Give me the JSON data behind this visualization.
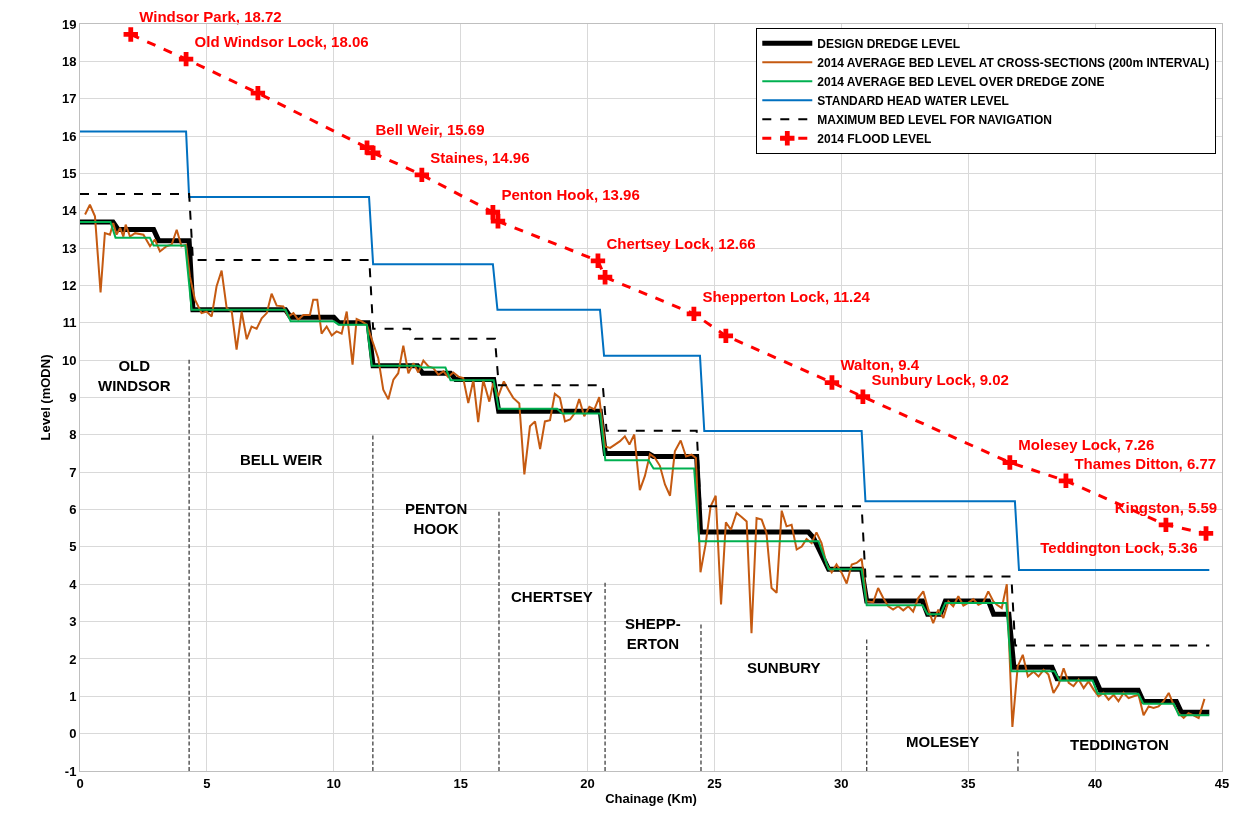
{
  "chart_data": {
    "type": "line",
    "xlabel": "Chainage (Km)",
    "ylabel": "Level (mODN)",
    "xlim": [
      0,
      45
    ],
    "ylim": [
      -1,
      19
    ],
    "xticks": [
      0,
      5,
      10,
      15,
      20,
      25,
      30,
      35,
      40,
      45
    ],
    "yticks": [
      -1,
      0,
      1,
      2,
      3,
      4,
      5,
      6,
      7,
      8,
      9,
      10,
      11,
      12,
      13,
      14,
      15,
      16,
      17,
      18,
      19
    ],
    "grid": true,
    "legend": "top right",
    "series": [
      {
        "name": "DESIGN DREDGE LEVEL",
        "color": "#000000",
        "line_style": "solid",
        "x": [
          0,
          1.3,
          1.5,
          2.9,
          3.1,
          4.3,
          4.45,
          8.1,
          8.3,
          10.0,
          10.2,
          11.35,
          11.55,
          13.3,
          13.5,
          14.6,
          14.8,
          16.3,
          16.5,
          20.5,
          20.7,
          22.4,
          22.6,
          24.3,
          24.45,
          28.7,
          28.9,
          29.5,
          30.8,
          31.0,
          33.2,
          33.4,
          33.9,
          34.1,
          35.8,
          36.0,
          36.6,
          36.8,
          38.3,
          38.5,
          40.0,
          40.2,
          41.7,
          41.9,
          43.2,
          43.4,
          44.5
        ],
        "values": [
          13.7,
          13.7,
          13.5,
          13.5,
          13.2,
          13.2,
          11.35,
          11.35,
          11.15,
          11.15,
          11.0,
          11.0,
          9.85,
          9.85,
          9.65,
          9.65,
          9.48,
          9.48,
          8.63,
          8.63,
          7.5,
          7.5,
          7.42,
          7.42,
          5.4,
          5.4,
          5.25,
          4.4,
          4.4,
          3.55,
          3.55,
          3.2,
          3.2,
          3.55,
          3.55,
          3.2,
          3.2,
          1.78,
          1.78,
          1.47,
          1.47,
          1.16,
          1.16,
          0.86,
          0.86,
          0.57,
          0.57
        ]
      },
      {
        "name": "2014 AVERAGE BED LEVEL AT CROSS-SECTIONS (200m INTERVAL)",
        "color": "#c55a11",
        "line_style": "solid",
        "x": [
          0.2,
          0.39,
          0.59,
          0.81,
          0.98,
          1.18,
          1.31,
          1.44,
          1.58,
          1.71,
          1.8,
          1.97,
          2.17,
          2.5,
          2.76,
          2.95,
          3.15,
          3.41,
          3.61,
          3.81,
          4.0,
          4.18,
          4.33,
          4.53,
          4.79,
          4.99,
          5.19,
          5.38,
          5.58,
          5.78,
          5.98,
          6.17,
          6.37,
          6.57,
          6.76,
          6.96,
          7.16,
          7.36,
          7.55,
          7.75,
          8.01,
          8.21,
          8.41,
          8.6,
          8.8,
          9.06,
          9.19,
          9.35,
          9.52,
          9.72,
          9.92,
          10.11,
          10.31,
          10.51,
          10.74,
          10.9,
          11.1,
          11.3,
          11.75,
          11.95,
          12.15,
          12.35,
          12.54,
          12.74,
          12.94,
          13.14,
          13.33,
          13.53,
          13.73,
          13.92,
          14.12,
          14.32,
          14.51,
          14.71,
          14.91,
          15.1,
          15.3,
          15.5,
          15.69,
          15.89,
          16.13,
          16.28,
          16.48,
          16.7,
          16.88,
          17.07,
          17.31,
          17.51,
          17.73,
          17.93,
          18.13,
          18.32,
          18.52,
          18.71,
          18.91,
          19.11,
          19.31,
          19.5,
          19.67,
          19.87,
          20.07,
          20.27,
          20.46,
          20.69,
          20.89,
          21.08,
          21.28,
          21.47,
          21.65,
          21.84,
          22.06,
          22.26,
          22.46,
          22.65,
          22.85,
          23.05,
          23.25,
          23.44,
          23.67,
          23.88,
          24.1,
          24.27,
          24.45,
          24.65,
          24.85,
          25.05,
          25.26,
          25.45,
          25.65,
          25.87,
          26.07,
          26.27,
          26.46,
          26.66,
          26.86,
          27.05,
          27.25,
          27.45,
          27.65,
          27.84,
          28.04,
          28.24,
          28.44,
          28.63,
          28.83,
          29.02,
          29.22,
          29.42,
          29.62,
          29.81,
          30.01,
          30.21,
          30.41,
          30.6,
          30.8,
          31.0,
          31.26,
          31.45,
          31.65,
          31.85,
          32.04,
          32.24,
          32.44,
          32.64,
          32.83,
          33.03,
          33.23,
          33.43,
          33.62,
          33.82,
          34.02,
          34.22,
          34.41,
          34.61,
          34.81,
          35.0,
          35.2,
          35.4,
          35.59,
          35.79,
          35.99,
          36.13,
          36.32,
          36.52,
          36.74,
          36.95,
          37.15,
          37.35,
          37.57,
          37.77,
          37.97,
          38.16,
          38.36,
          38.56,
          38.76,
          38.96,
          39.15,
          39.35,
          39.55,
          39.74,
          39.94,
          40.14,
          40.33,
          40.53,
          40.73,
          40.92,
          41.12,
          41.32,
          41.52,
          41.71,
          41.91,
          42.11,
          42.3,
          42.5,
          42.7,
          42.9,
          43.09,
          43.29,
          43.49,
          43.68,
          43.88,
          44.08,
          44.31
        ],
        "values": [
          13.9,
          14.16,
          13.85,
          11.81,
          13.4,
          13.36,
          13.67,
          13.36,
          13.54,
          13.31,
          13.63,
          13.31,
          13.4,
          13.36,
          13.05,
          13.23,
          12.91,
          13.05,
          13.09,
          13.49,
          13.05,
          13.09,
          12.24,
          11.62,
          11.26,
          11.3,
          11.17,
          11.97,
          12.4,
          11.39,
          11.3,
          10.28,
          11.3,
          10.56,
          10.9,
          10.84,
          11.12,
          11.26,
          11.78,
          11.46,
          11.44,
          11.17,
          11.26,
          11.08,
          11.21,
          11.21,
          11.62,
          11.62,
          10.71,
          10.9,
          10.66,
          10.77,
          10.71,
          11.3,
          9.88,
          11.1,
          11.04,
          10.95,
          10.06,
          9.21,
          8.95,
          9.48,
          9.65,
          10.39,
          9.65,
          9.92,
          9.67,
          9.99,
          9.83,
          9.79,
          9.61,
          9.7,
          9.55,
          9.67,
          9.56,
          9.52,
          8.85,
          9.47,
          8.34,
          9.47,
          8.89,
          9.38,
          9.03,
          9.43,
          9.21,
          8.99,
          8.84,
          6.94,
          8.23,
          8.36,
          7.62,
          8.36,
          8.39,
          9.1,
          8.99,
          8.36,
          8.41,
          8.59,
          8.96,
          8.5,
          8.75,
          8.68,
          9.01,
          7.69,
          7.65,
          7.74,
          7.83,
          7.96,
          7.74,
          8.01,
          6.52,
          6.9,
          7.48,
          7.39,
          7.17,
          6.67,
          6.37,
          7.56,
          7.85,
          7.42,
          7.47,
          7.38,
          4.32,
          5.06,
          6.09,
          6.37,
          3.46,
          5.66,
          5.46,
          5.91,
          5.8,
          5.68,
          2.69,
          5.77,
          5.73,
          5.37,
          3.9,
          3.77,
          5.97,
          5.55,
          5.59,
          4.93,
          5.01,
          5.21,
          5.1,
          5.39,
          5.1,
          4.53,
          4.32,
          4.53,
          4.31,
          4.02,
          4.53,
          4.57,
          4.68,
          3.54,
          3.52,
          3.9,
          3.63,
          3.41,
          3.32,
          3.41,
          3.3,
          3.41,
          3.27,
          3.63,
          3.81,
          3.32,
          2.96,
          3.32,
          3.1,
          3.54,
          3.41,
          3.68,
          3.43,
          3.5,
          3.6,
          3.45,
          3.51,
          3.81,
          3.54,
          3.45,
          3.36,
          4.0,
          0.18,
          1.8,
          2.11,
          1.53,
          1.66,
          1.53,
          1.71,
          1.58,
          1.09,
          1.31,
          1.75,
          1.36,
          1.27,
          1.45,
          1.22,
          1.4,
          1.18,
          1.0,
          1.09,
          0.91,
          1.04,
          0.87,
          1.09,
          0.95,
          1.0,
          1.04,
          0.49,
          0.73,
          0.69,
          0.73,
          0.87,
          1.09,
          0.78,
          0.55,
          0.42,
          0.55,
          0.49,
          0.42,
          0.93
        ]
      },
      {
        "name": "2014 AVERAGE BED LEVEL OVER DREDGE ZONE",
        "color": "#00b050",
        "line_style": "solid",
        "x": [
          0,
          1.2,
          1.4,
          2.75,
          2.9,
          4.15,
          4.4,
          8.1,
          8.3,
          10.0,
          10.2,
          11.3,
          11.5,
          13.3,
          13.5,
          14.4,
          14.6,
          16.3,
          16.5,
          18.8,
          19.0,
          20.5,
          20.7,
          22.4,
          22.6,
          24.2,
          24.4,
          29.1,
          29.5,
          30.8,
          31.0,
          33.2,
          33.4,
          33.9,
          34.1,
          36.5,
          36.7,
          38.4,
          38.6,
          39.9,
          40.1,
          41.7,
          41.9,
          43.1,
          43.3,
          44.5
        ],
        "values": [
          13.7,
          13.7,
          13.28,
          13.28,
          13.07,
          13.07,
          11.35,
          11.35,
          11.04,
          11.04,
          10.95,
          10.95,
          9.85,
          9.85,
          9.8,
          9.8,
          9.46,
          9.46,
          8.7,
          8.7,
          8.57,
          8.57,
          7.32,
          7.32,
          7.1,
          7.1,
          5.15,
          5.15,
          4.4,
          4.4,
          3.44,
          3.44,
          3.2,
          3.2,
          3.5,
          3.5,
          1.67,
          1.67,
          1.42,
          1.42,
          1.07,
          1.07,
          0.8,
          0.8,
          0.49,
          0.49
        ]
      },
      {
        "name": "STANDARD HEAD WATER LEVEL",
        "color": "#0070c0",
        "line_style": "solid",
        "x": [
          0,
          4.18,
          4.3,
          11.39,
          11.55,
          16.27,
          16.45,
          20.49,
          20.65,
          24.43,
          24.6,
          30.8,
          30.95,
          36.84,
          37.0,
          44.5
        ],
        "values": [
          16.12,
          16.12,
          14.37,
          14.37,
          12.57,
          12.57,
          11.35,
          11.35,
          10.12,
          10.12,
          8.1,
          8.1,
          6.22,
          6.22,
          4.38,
          4.38
        ]
      },
      {
        "name": "MAXIMUM BED LEVEL FOR NAVIGATION",
        "color": "#000000",
        "line_style": "dashed",
        "x": [
          0,
          4.3,
          4.45,
          11.4,
          11.55,
          13.0,
          13.2,
          16.35,
          16.5,
          20.6,
          20.75,
          24.3,
          24.45,
          30.8,
          30.95,
          36.7,
          36.85,
          44.5
        ],
        "values": [
          14.45,
          14.45,
          12.68,
          12.68,
          10.84,
          10.84,
          10.57,
          10.57,
          9.33,
          9.33,
          8.11,
          8.11,
          6.09,
          6.09,
          4.21,
          4.21,
          2.36,
          2.36
        ]
      },
      {
        "name": "2014 FLOOD LEVEL",
        "color": "#ff0000",
        "line_style": "dashed",
        "marker": "cross",
        "x": [
          2.0,
          4.18,
          7.01,
          11.31,
          11.55,
          13.47,
          16.27,
          16.47,
          20.41,
          20.69,
          24.19,
          25.45,
          29.63,
          30.85,
          36.64,
          38.85,
          42.79,
          44.37
        ],
        "values": [
          18.72,
          18.06,
          17.15,
          15.69,
          15.55,
          14.96,
          13.96,
          13.72,
          12.66,
          12.22,
          11.24,
          10.65,
          9.4,
          9.02,
          7.26,
          6.77,
          5.59,
          5.36
        ],
        "value_labels": [
          "Windsor Park, 18.72",
          "Old Windsor Lock, 18.06",
          null,
          "Bell Weir, 15.69",
          null,
          "Staines, 14.96",
          "Penton Hook, 13.96",
          null,
          "Chertsey Lock, 12.66",
          null,
          "Shepperton Lock, 11.24",
          null,
          "Walton, 9.4",
          "Sunbury Lock, 9.02",
          "Molesey Lock, 7.26",
          "Thames Ditton, 6.77",
          "Kingston, 5.59",
          "Teddington Lock, 5.36"
        ]
      },
      {
        "color": "#404040",
        "line_style": "dashed",
        "x": [
          4.3,
          4.3
        ],
        "values": [
          -1,
          10.01
        ]
      },
      {
        "color": "#404040",
        "line_style": "dashed",
        "x": [
          11.54,
          11.54
        ],
        "values": [
          -1,
          7.98
        ]
      },
      {
        "color": "#404040",
        "line_style": "dashed",
        "x": [
          16.51,
          16.51
        ],
        "values": [
          -1,
          5.94
        ]
      },
      {
        "color": "#404040",
        "line_style": "dashed",
        "x": [
          20.69,
          20.69
        ],
        "values": [
          -1,
          4.04
        ]
      },
      {
        "color": "#404040",
        "line_style": "dashed",
        "x": [
          24.47,
          24.47
        ],
        "values": [
          -1,
          2.92
        ]
      },
      {
        "color": "#404040",
        "line_style": "dashed",
        "x": [
          31.0,
          31.0
        ],
        "values": [
          -1,
          2.52
        ]
      },
      {
        "color": "#404040",
        "line_style": "dashed",
        "x": [
          36.96,
          36.96
        ],
        "values": [
          -1,
          -0.48
        ]
      }
    ],
    "annotations": [
      "OLD\nWINDSOR",
      "BELL WEIR",
      "PENTON\nHOOK",
      "CHERTSEY",
      "SHEPP-\nERTON",
      "SUNBURY",
      "MOLESEY",
      "TEDDINGTON"
    ]
  }
}
